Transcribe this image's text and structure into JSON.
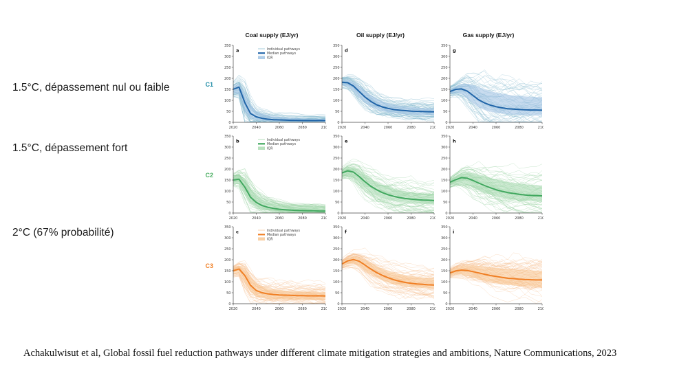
{
  "slide": {
    "row_labels": [
      "1.5°C, dépassement nul ou faible",
      "1.5°C, dépassement fort",
      "2°C (67% probabilité)"
    ],
    "citation": "Achakulwisut et al, Global fossil fuel reduction pathways under different climate mitigation strategies and ambitions, Nature Communications, 2023"
  },
  "figure": {
    "column_titles": [
      "Coal supply (EJ/yr)",
      "Oil supply (EJ/yr)",
      "Gas supply (EJ/yr)"
    ],
    "scenarios": [
      {
        "label": "C1",
        "color": "#1e8ca6"
      },
      {
        "label": "C2",
        "color": "#4caf64"
      },
      {
        "label": "C3",
        "color": "#f07f24"
      }
    ],
    "legend_labels": [
      "Individual pathways",
      "Median pathways",
      "IQR"
    ]
  },
  "colors": {
    "C1": {
      "median": "#1f64a8",
      "band": "#9cc0e2",
      "faint": "#7eb6cc"
    },
    "C2": {
      "median": "#41a85f",
      "band": "#a6d9ae",
      "faint": "#94cf9e"
    },
    "C3": {
      "median": "#f07f24",
      "band": "#f8c48f",
      "faint": "#f5bc8a"
    }
  },
  "chart_data": {
    "type": "line",
    "x": [
      2020,
      2025,
      2030,
      2035,
      2040,
      2045,
      2050,
      2055,
      2060,
      2065,
      2070,
      2075,
      2080,
      2085,
      2090,
      2095,
      2100
    ],
    "x_ticks": [
      2020,
      2040,
      2060,
      2080,
      2100
    ],
    "y_ticks": [
      0,
      50,
      100,
      150,
      200,
      250,
      300,
      350
    ],
    "ylim": [
      0,
      350
    ],
    "columns": [
      "Coal supply (EJ/yr)",
      "Oil supply (EJ/yr)",
      "Gas supply (EJ/yr)"
    ],
    "rows": [
      "C1",
      "C2",
      "C3"
    ],
    "panels": [
      {
        "panel": "a",
        "row": 0,
        "col": 0,
        "scenario": "C1",
        "fuel": "Coal",
        "legend": true,
        "median": [
          150,
          160,
          90,
          40,
          25,
          18,
          14,
          12,
          11,
          10,
          9,
          9,
          8,
          8,
          8,
          8,
          8
        ],
        "iqr_low": [
          132,
          128,
          48,
          18,
          11,
          8,
          6,
          5,
          4,
          4,
          3,
          3,
          3,
          3,
          2,
          2,
          2
        ],
        "iqr_high": [
          166,
          176,
          132,
          80,
          52,
          40,
          33,
          28,
          25,
          22,
          20,
          19,
          18,
          17,
          16,
          16,
          15
        ]
      },
      {
        "panel": "d",
        "row": 0,
        "col": 1,
        "scenario": "C1",
        "fuel": "Oil",
        "legend": false,
        "median": [
          182,
          180,
          165,
          140,
          115,
          95,
          80,
          70,
          63,
          58,
          55,
          53,
          51,
          50,
          49,
          48,
          48
        ],
        "iqr_low": [
          168,
          162,
          142,
          112,
          88,
          70,
          58,
          50,
          45,
          41,
          38,
          36,
          35,
          34,
          33,
          32,
          32
        ],
        "iqr_high": [
          192,
          194,
          184,
          165,
          145,
          124,
          108,
          96,
          87,
          80,
          75,
          72,
          69,
          67,
          65,
          64,
          63
        ]
      },
      {
        "panel": "g",
        "row": 0,
        "col": 2,
        "scenario": "C1",
        "fuel": "Gas",
        "legend": false,
        "median": [
          140,
          150,
          152,
          142,
          122,
          102,
          88,
          78,
          71,
          66,
          62,
          60,
          58,
          57,
          56,
          56,
          55
        ],
        "iqr_low": [
          128,
          134,
          128,
          108,
          86,
          68,
          56,
          48,
          43,
          40,
          37,
          35,
          34,
          33,
          32,
          31,
          31
        ],
        "iqr_high": [
          152,
          164,
          174,
          176,
          170,
          160,
          150,
          142,
          135,
          130,
          126,
          122,
          120,
          118,
          116,
          115,
          114
        ]
      },
      {
        "panel": "b",
        "row": 1,
        "col": 0,
        "scenario": "C2",
        "fuel": "Coal",
        "legend": true,
        "median": [
          150,
          154,
          118,
          72,
          48,
          34,
          26,
          21,
          17,
          15,
          13,
          12,
          11,
          10,
          10,
          9,
          9
        ],
        "iqr_low": [
          134,
          130,
          82,
          42,
          26,
          17,
          12,
          9,
          8,
          7,
          6,
          5,
          5,
          4,
          4,
          4,
          4
        ],
        "iqr_high": [
          163,
          170,
          150,
          112,
          82,
          62,
          50,
          42,
          36,
          32,
          28,
          26,
          24,
          23,
          22,
          21,
          20
        ]
      },
      {
        "panel": "e",
        "row": 1,
        "col": 1,
        "scenario": "C2",
        "fuel": "Oil",
        "legend": false,
        "median": [
          182,
          192,
          186,
          166,
          142,
          122,
          106,
          93,
          83,
          76,
          70,
          66,
          63,
          61,
          59,
          58,
          57
        ],
        "iqr_low": [
          168,
          173,
          161,
          138,
          113,
          93,
          79,
          68,
          60,
          54,
          50,
          47,
          44,
          43,
          41,
          40,
          39
        ],
        "iqr_high": [
          193,
          206,
          209,
          196,
          176,
          156,
          141,
          128,
          118,
          110,
          104,
          99,
          95,
          92,
          89,
          87,
          86
        ]
      },
      {
        "panel": "h",
        "row": 1,
        "col": 2,
        "scenario": "C2",
        "fuel": "Gas",
        "legend": false,
        "median": [
          140,
          152,
          161,
          158,
          148,
          136,
          125,
          115,
          106,
          99,
          93,
          89,
          85,
          82,
          80,
          79,
          78
        ],
        "iqr_low": [
          127,
          135,
          137,
          129,
          116,
          103,
          92,
          83,
          76,
          70,
          65,
          62,
          59,
          57,
          55,
          54,
          53
        ],
        "iqr_high": [
          152,
          168,
          183,
          187,
          183,
          176,
          168,
          160,
          153,
          147,
          142,
          137,
          134,
          131,
          129,
          127,
          125
        ]
      },
      {
        "panel": "c",
        "row": 2,
        "col": 0,
        "scenario": "C3",
        "fuel": "Coal",
        "legend": true,
        "median": [
          150,
          158,
          128,
          84,
          60,
          50,
          45,
          42,
          40,
          39,
          38,
          37,
          37,
          36,
          36,
          36,
          35
        ],
        "iqr_low": [
          135,
          137,
          93,
          53,
          34,
          27,
          23,
          21,
          20,
          19,
          18,
          17,
          17,
          17,
          16,
          16,
          16
        ],
        "iqr_high": [
          164,
          173,
          160,
          124,
          94,
          79,
          71,
          66,
          63,
          60,
          58,
          57,
          56,
          55,
          55,
          54,
          54
        ]
      },
      {
        "panel": "f",
        "row": 2,
        "col": 1,
        "scenario": "C3",
        "fuel": "Oil",
        "legend": false,
        "median": [
          181,
          195,
          201,
          193,
          176,
          158,
          142,
          129,
          118,
          109,
          102,
          97,
          93,
          90,
          88,
          86,
          85
        ],
        "iqr_low": [
          168,
          180,
          183,
          171,
          151,
          133,
          118,
          105,
          96,
          88,
          82,
          78,
          75,
          73,
          71,
          69,
          68
        ],
        "iqr_high": [
          192,
          208,
          216,
          212,
          200,
          186,
          172,
          160,
          150,
          142,
          135,
          130,
          126,
          122,
          120,
          118,
          116
        ]
      },
      {
        "panel": "i",
        "row": 2,
        "col": 2,
        "scenario": "C3",
        "fuel": "Gas",
        "legend": false,
        "median": [
          140,
          149,
          153,
          151,
          146,
          140,
          134,
          128,
          124,
          120,
          116,
          114,
          112,
          110,
          109,
          108,
          108
        ],
        "iqr_low": [
          127,
          132,
          133,
          127,
          119,
          111,
          104,
          98,
          93,
          89,
          86,
          83,
          81,
          80,
          78,
          77,
          77
        ],
        "iqr_high": [
          152,
          165,
          172,
          175,
          175,
          172,
          169,
          166,
          163,
          160,
          158,
          156,
          154,
          153,
          152,
          151,
          150
        ]
      }
    ]
  }
}
